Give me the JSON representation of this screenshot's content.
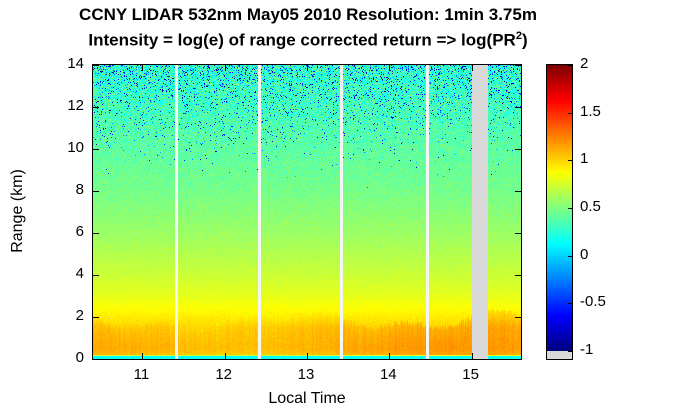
{
  "chart_data": {
    "type": "heatmap",
    "title": "CCNY LIDAR 532nm May05 2010 Resolution: 1min 3.75m",
    "subtitle_prefix": "Intensity = log(e) of range corrected return => log(PR",
    "subtitle_sup": "2",
    "subtitle_suffix": ")",
    "xlabel": "Local Time",
    "ylabel": "Range (km)",
    "x_range": [
      10.4,
      15.6
    ],
    "y_range": [
      0,
      14
    ],
    "x_ticks": [
      11,
      12,
      13,
      14,
      15
    ],
    "y_ticks": [
      0,
      2,
      4,
      6,
      8,
      10,
      12,
      14
    ],
    "colormap": "jet",
    "color_range": [
      -1,
      2
    ],
    "colorbar_ticks": [
      2,
      1.5,
      1,
      0.5,
      0,
      -0.5,
      -1
    ],
    "colorbar_nan_color": "#d9d9d9",
    "data_gaps": [
      {
        "start": 11.4,
        "end": 11.44,
        "color": "#f5f5f5"
      },
      {
        "start": 12.4,
        "end": 12.44,
        "color": "#f5f5f5"
      },
      {
        "start": 13.4,
        "end": 13.44,
        "color": "#f5f5f5"
      },
      {
        "start": 14.45,
        "end": 14.49,
        "color": "#f5f5f5"
      },
      {
        "start": 15.0,
        "end": 15.2,
        "color": "#d9d9d9"
      }
    ],
    "intensity_profile": [
      {
        "range_km": 0.0,
        "log_pr2": 0.15
      },
      {
        "range_km": 0.12,
        "log_pr2": 0.15
      },
      {
        "range_km": 0.2,
        "log_pr2": 0.95
      },
      {
        "range_km": 0.5,
        "log_pr2": 1.0
      },
      {
        "range_km": 1.5,
        "log_pr2": 1.0
      },
      {
        "range_km": 2.2,
        "log_pr2": 0.9
      },
      {
        "range_km": 3.0,
        "log_pr2": 0.8
      },
      {
        "range_km": 4.0,
        "log_pr2": 0.72
      },
      {
        "range_km": 6.0,
        "log_pr2": 0.58
      },
      {
        "range_km": 8.0,
        "log_pr2": 0.47
      },
      {
        "range_km": 10.0,
        "log_pr2": 0.4
      },
      {
        "range_km": 12.0,
        "log_pr2": 0.32
      },
      {
        "range_km": 14.0,
        "log_pr2": 0.26
      }
    ],
    "notes": "Aerosol boundary layer (orange, ~1 to 1.2) below ~2 km with wavy top; intensity decreases with range; blue noise speckle increases above ~9 km"
  }
}
